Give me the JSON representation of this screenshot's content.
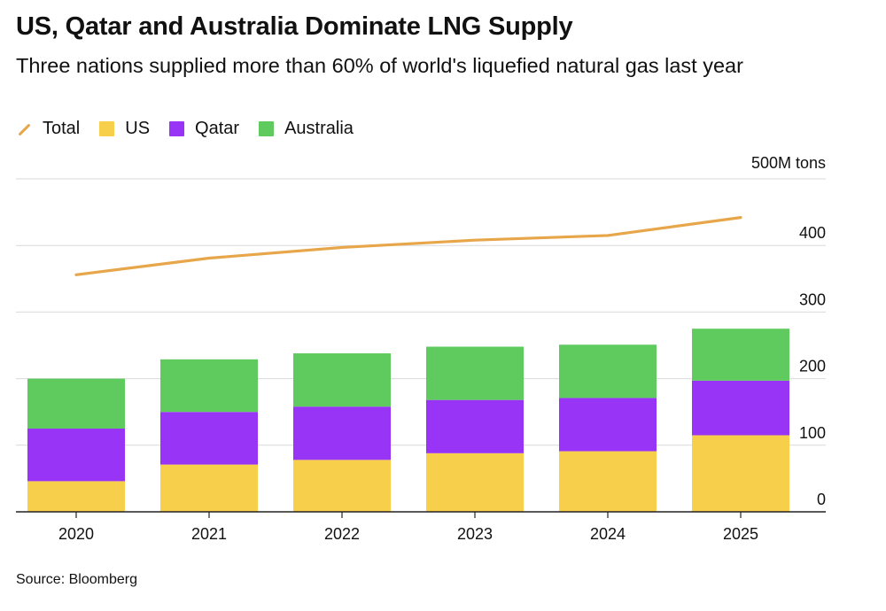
{
  "chart_data": {
    "type": "bar",
    "stacked": true,
    "title": "US, Qatar and Australia Dominate LNG Supply",
    "subtitle": "Three nations supplied more than 60% of world's liquefied natural gas last year",
    "source": "Source: Bloomberg",
    "unit_label": "500M tons",
    "categories": [
      "2020",
      "2021",
      "2022",
      "2023",
      "2024",
      "2025"
    ],
    "series": [
      {
        "name": "US",
        "color": "#F8CF4A",
        "values": [
          46,
          71,
          78,
          88,
          91,
          115
        ]
      },
      {
        "name": "Qatar",
        "color": "#9834F6",
        "values": [
          79,
          79,
          80,
          80,
          80,
          82
        ]
      },
      {
        "name": "Australia",
        "color": "#5FCB5E",
        "values": [
          75,
          79,
          80,
          80,
          80,
          78
        ]
      }
    ],
    "line_series": {
      "name": "Total",
      "color": "#E8A64B",
      "values": [
        356,
        381,
        397,
        408,
        415,
        442
      ]
    },
    "yticks": [
      0,
      100,
      200,
      300,
      400
    ],
    "ylim": [
      0,
      500
    ],
    "grid": true,
    "legend_position": "top-left"
  }
}
